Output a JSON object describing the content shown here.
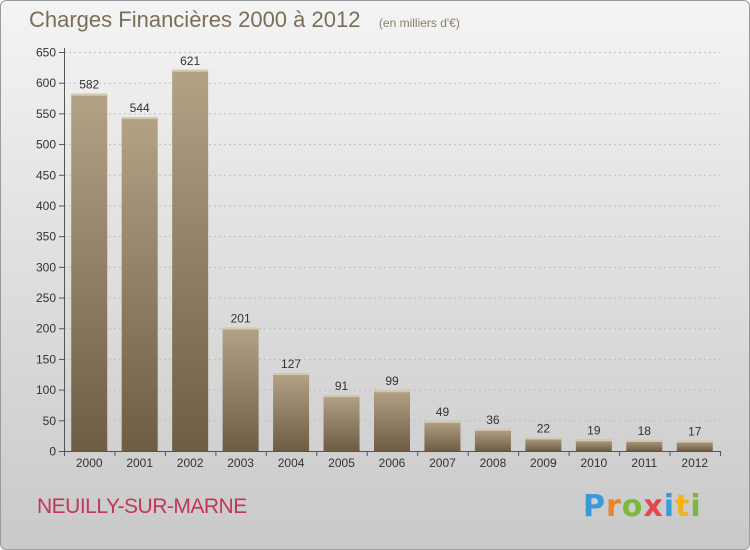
{
  "header": {
    "title": "Charges Financières 2000 à 2012",
    "subtitle": "(en milliers d'€)"
  },
  "footer": {
    "commune": "NEUILLY-SUR-MARNE",
    "logo_text": "Proxiti",
    "logo_colors": [
      "#3a9ad9",
      "#e8842a",
      "#7bb83b",
      "#e2474b",
      "#3a9ad9",
      "#f1b51c",
      "#7bb83b"
    ]
  },
  "colors": {
    "bar_light": "#b3a286",
    "bar_dark": "#6e5d44",
    "axis_text": "#333333",
    "grid": "#bdbdbd"
  },
  "chart_data": {
    "type": "bar",
    "title": "Charges Financières 2000 à 2012",
    "subtitle": "(en milliers d'€)",
    "categories": [
      "2000",
      "2001",
      "2002",
      "2003",
      "2004",
      "2005",
      "2006",
      "2007",
      "2008",
      "2009",
      "2010",
      "2011",
      "2012"
    ],
    "values": [
      582,
      544,
      621,
      201,
      127,
      91,
      99,
      49,
      36,
      22,
      19,
      18,
      17
    ],
    "ylim": [
      0,
      650
    ],
    "yticks": [
      0,
      50,
      100,
      150,
      200,
      250,
      300,
      350,
      400,
      450,
      500,
      550,
      600,
      650
    ],
    "grid": "dashed horizontal",
    "data_labels": true
  }
}
